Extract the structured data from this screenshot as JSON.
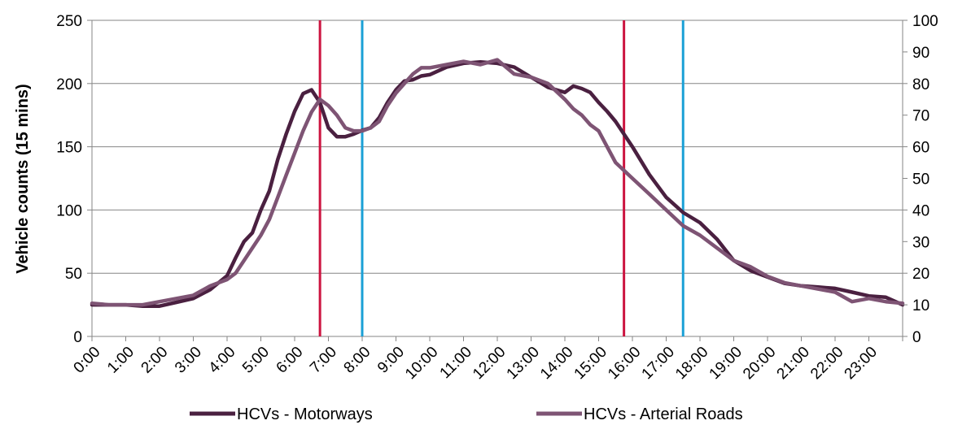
{
  "chart_data": {
    "type": "line",
    "ylabel": "Vehicle counts (15 mins)",
    "ylim": [
      0,
      250
    ],
    "y_ticks": [
      "0",
      "50",
      "100",
      "150",
      "200",
      "250"
    ],
    "y2lim": [
      0,
      100
    ],
    "y2_ticks": [
      "0",
      "10",
      "20",
      "30",
      "40",
      "50",
      "60",
      "70",
      "80",
      "90",
      "100"
    ],
    "x_ticks": [
      "0:00",
      "1:00",
      "2:00",
      "3:00",
      "4:00",
      "5:00",
      "6:00",
      "7:00",
      "8:00",
      "9:00",
      "10:00",
      "11:00",
      "12:00",
      "13:00",
      "14:00",
      "15:00",
      "16:00",
      "17:00",
      "18:00",
      "19:00",
      "20:00",
      "21:00",
      "22:00",
      "23:00"
    ],
    "grid": true,
    "legend_position": "bottom",
    "series": [
      {
        "name": "HCVs - Motorways",
        "axis": "left",
        "color": "#4a2040",
        "x": [
          0,
          0.5,
          1,
          1.5,
          2,
          2.5,
          3,
          3.5,
          4,
          4.25,
          4.5,
          4.75,
          5,
          5.25,
          5.5,
          5.75,
          6,
          6.25,
          6.5,
          6.75,
          7,
          7.25,
          7.5,
          7.75,
          8,
          8.25,
          8.5,
          8.75,
          9,
          9.25,
          9.5,
          9.75,
          10,
          10.5,
          11,
          11.5,
          12,
          12.5,
          13,
          13.5,
          14,
          14.25,
          14.5,
          14.75,
          15,
          15.25,
          15.5,
          16,
          16.5,
          17,
          17.5,
          18,
          18.5,
          19,
          19.5,
          20,
          20.5,
          21,
          21.5,
          22,
          22.5,
          23,
          23.5,
          24
        ],
        "values": [
          25,
          25,
          25,
          24,
          24,
          27,
          30,
          37,
          48,
          62,
          75,
          82,
          100,
          115,
          140,
          160,
          178,
          192,
          195,
          185,
          165,
          158,
          158,
          160,
          163,
          165,
          173,
          185,
          195,
          202,
          203,
          206,
          207,
          213,
          216,
          217,
          216,
          213,
          205,
          197,
          193,
          198,
          196,
          193,
          185,
          178,
          170,
          150,
          128,
          110,
          98,
          90,
          77,
          60,
          52,
          47,
          42,
          40,
          39,
          38,
          35,
          32,
          31,
          25
        ]
      },
      {
        "name": "HCVs - Arterial Roads",
        "axis": "right",
        "color": "#7e5474",
        "x": [
          0,
          0.5,
          1,
          1.5,
          2,
          2.5,
          3,
          3.5,
          4,
          4.25,
          4.5,
          4.75,
          5,
          5.25,
          5.5,
          5.75,
          6,
          6.25,
          6.5,
          6.75,
          7,
          7.25,
          7.5,
          7.75,
          8,
          8.25,
          8.5,
          8.75,
          9,
          9.25,
          9.5,
          9.75,
          10,
          10.5,
          11,
          11.5,
          12,
          12.5,
          13,
          13.5,
          14,
          14.25,
          14.5,
          14.75,
          15,
          15.25,
          15.5,
          16,
          16.5,
          17,
          17.5,
          18,
          18.5,
          19,
          19.5,
          20,
          20.5,
          21,
          21.5,
          22,
          22.5,
          23,
          23.5,
          24
        ],
        "values": [
          10.5,
          10,
          10,
          10,
          11,
          12,
          13,
          16,
          18,
          20,
          24,
          28,
          32,
          37,
          44,
          51,
          58,
          65,
          71,
          75,
          73,
          70,
          66,
          65,
          65,
          66,
          68,
          73,
          77,
          80,
          83,
          85,
          85,
          86,
          87,
          86,
          87.5,
          83,
          82,
          80,
          75,
          72,
          70,
          67,
          65,
          60,
          55,
          50,
          45,
          40,
          35,
          32,
          28,
          24,
          22,
          19,
          17,
          16,
          15,
          14,
          11,
          12,
          11,
          10.5
        ]
      }
    ],
    "vertical_markers": [
      {
        "x": 6.75,
        "color": "#cc1440"
      },
      {
        "x": 8.0,
        "color": "#1aa0d6"
      },
      {
        "x": 15.75,
        "color": "#cc1440"
      },
      {
        "x": 17.5,
        "color": "#1aa0d6"
      }
    ]
  }
}
